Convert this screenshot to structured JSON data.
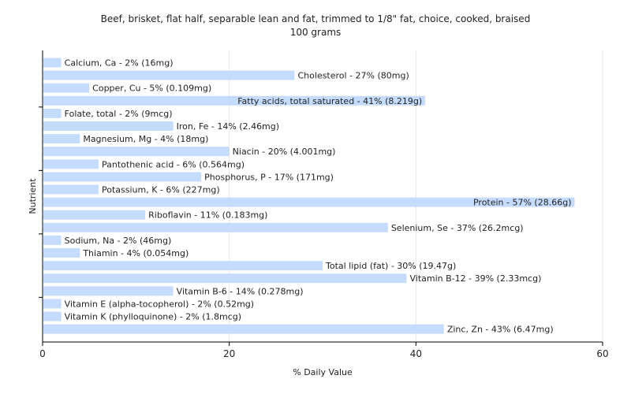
{
  "chart_data": {
    "type": "bar",
    "orientation": "horizontal",
    "title": "Beef, brisket, flat half, separable lean and fat, trimmed to 1/8\" fat, choice, cooked, braised",
    "subtitle": "100 grams",
    "xlabel": "% Daily Value",
    "ylabel": "Nutrient",
    "xlim": [
      0,
      60
    ],
    "xticks": [
      0,
      20,
      40,
      60
    ],
    "grid": true,
    "bar_color": "#c6dcff",
    "categories": [
      "Calcium, Ca",
      "Cholesterol",
      "Copper, Cu",
      "Fatty acids, total saturated",
      "Folate, total",
      "Iron, Fe",
      "Magnesium, Mg",
      "Niacin",
      "Pantothenic acid",
      "Phosphorus, P",
      "Potassium, K",
      "Protein",
      "Riboflavin",
      "Selenium, Se",
      "Sodium, Na",
      "Thiamin",
      "Total lipid (fat)",
      "Vitamin B-12",
      "Vitamin B-6",
      "Vitamin E (alpha-tocopherol)",
      "Vitamin K (phylloquinone)",
      "Zinc, Zn"
    ],
    "values": [
      2,
      27,
      5,
      41,
      2,
      14,
      4,
      20,
      6,
      17,
      6,
      57,
      11,
      37,
      2,
      4,
      30,
      39,
      14,
      2,
      2,
      43
    ],
    "labels": [
      "Calcium, Ca - 2% (16mg)",
      "Cholesterol - 27% (80mg)",
      "Copper, Cu - 5% (0.109mg)",
      "Fatty acids, total saturated - 41% (8.219g)",
      "Folate, total - 2% (9mcg)",
      "Iron, Fe - 14% (2.46mg)",
      "Magnesium, Mg - 4% (18mg)",
      "Niacin - 20% (4.001mg)",
      "Pantothenic acid - 6% (0.564mg)",
      "Phosphorus, P - 17% (171mg)",
      "Potassium, K - 6% (227mg)",
      "Protein - 57% (28.66g)",
      "Riboflavin - 11% (0.183mg)",
      "Selenium, Se - 37% (26.2mcg)",
      "Sodium, Na - 2% (46mg)",
      "Thiamin - 4% (0.054mg)",
      "Total lipid (fat) - 30% (19.47g)",
      "Vitamin B-12 - 39% (2.33mcg)",
      "Vitamin B-6 - 14% (0.278mg)",
      "Vitamin E (alpha-tocopherol) - 2% (0.52mg)",
      "Vitamin K (phylloquinone) - 2% (1.8mcg)",
      "Zinc, Zn - 43% (6.47mg)"
    ]
  }
}
